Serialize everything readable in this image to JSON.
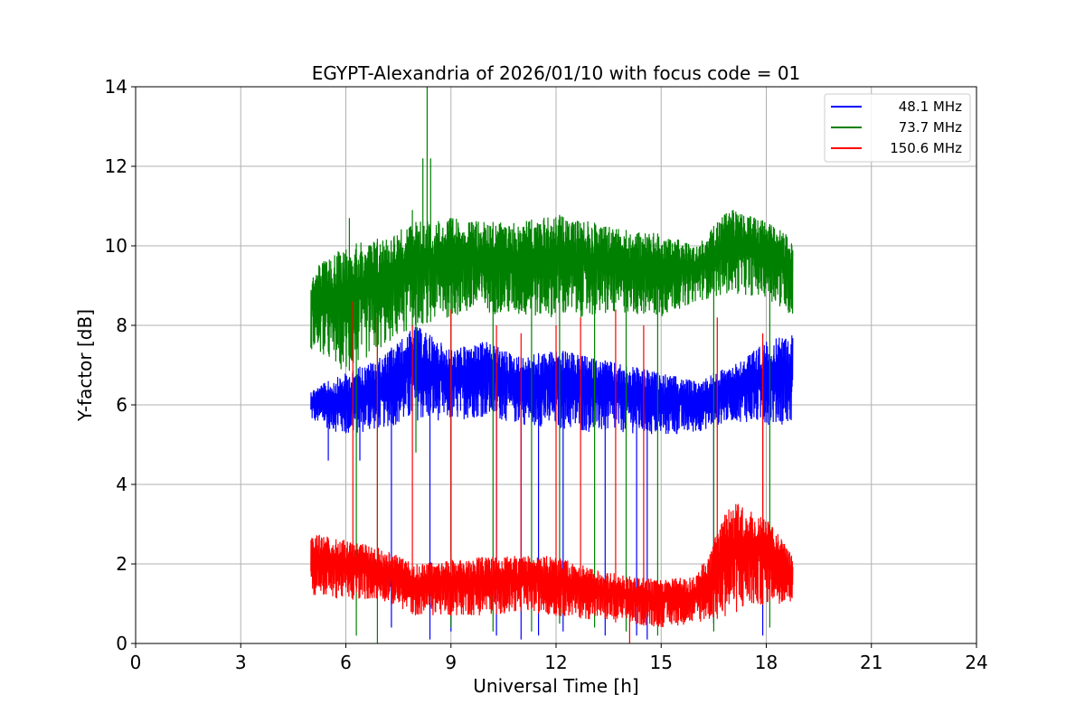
{
  "chart_data": {
    "type": "line",
    "title": "EGYPT-Alexandria of 2026/01/10 with focus code = 01",
    "xlabel": "Universal Time [h]",
    "ylabel": "Y-factor [dB]",
    "xlim": [
      0,
      24
    ],
    "ylim": [
      0,
      14
    ],
    "xticks": [
      0,
      3,
      6,
      9,
      12,
      15,
      18,
      21,
      24
    ],
    "yticks": [
      0,
      2,
      4,
      6,
      8,
      10,
      12,
      14
    ],
    "grid": true,
    "legend_position": "top-right",
    "data_range_hours": [
      5.0,
      18.75
    ],
    "series": [
      {
        "name": "48.1 MHz",
        "color": "#0000ff",
        "band_low": [
          [
            5.0,
            5.6
          ],
          [
            6.0,
            5.2
          ],
          [
            7.0,
            5.4
          ],
          [
            8.0,
            5.6
          ],
          [
            9.0,
            5.6
          ],
          [
            10.0,
            5.7
          ],
          [
            11.0,
            5.5
          ],
          [
            12.0,
            5.4
          ],
          [
            13.0,
            5.3
          ],
          [
            14.0,
            5.3
          ],
          [
            15.0,
            5.2
          ],
          [
            16.0,
            5.3
          ],
          [
            17.0,
            5.6
          ],
          [
            18.0,
            5.5
          ],
          [
            18.75,
            5.5
          ]
        ],
        "band_high": [
          [
            5.0,
            6.4
          ],
          [
            6.0,
            6.8
          ],
          [
            7.0,
            7.2
          ],
          [
            8.0,
            8.0
          ],
          [
            9.0,
            7.4
          ],
          [
            10.0,
            7.6
          ],
          [
            11.0,
            7.2
          ],
          [
            12.0,
            7.4
          ],
          [
            13.0,
            7.2
          ],
          [
            14.0,
            7.0
          ],
          [
            15.0,
            6.8
          ],
          [
            16.0,
            6.6
          ],
          [
            17.0,
            7.0
          ],
          [
            18.0,
            7.6
          ],
          [
            18.75,
            7.8
          ]
        ],
        "dips": [
          [
            5.5,
            4.6
          ],
          [
            6.4,
            4.6
          ],
          [
            7.3,
            0.4
          ],
          [
            8.4,
            0.1
          ],
          [
            9.0,
            0.3
          ],
          [
            10.3,
            0.2
          ],
          [
            11.0,
            0.1
          ],
          [
            11.5,
            0.2
          ],
          [
            12.2,
            0.3
          ],
          [
            13.4,
            0.2
          ],
          [
            14.3,
            0.2
          ],
          [
            14.6,
            0.1
          ],
          [
            16.5,
            0.5
          ],
          [
            17.9,
            0.2
          ]
        ]
      },
      {
        "name": "73.7 MHz",
        "color": "#008000",
        "band_low": [
          [
            5.0,
            7.4
          ],
          [
            6.0,
            6.8
          ],
          [
            7.0,
            7.4
          ],
          [
            8.0,
            8.0
          ],
          [
            9.0,
            8.2
          ],
          [
            10.0,
            8.3
          ],
          [
            11.0,
            8.2
          ],
          [
            12.0,
            8.2
          ],
          [
            13.0,
            8.2
          ],
          [
            14.0,
            8.3
          ],
          [
            15.0,
            8.2
          ],
          [
            16.0,
            8.6
          ],
          [
            17.0,
            8.8
          ],
          [
            18.0,
            8.7
          ],
          [
            18.75,
            8.2
          ]
        ],
        "band_high": [
          [
            5.0,
            9.4
          ],
          [
            6.0,
            10.0
          ],
          [
            7.0,
            10.2
          ],
          [
            8.0,
            10.6
          ],
          [
            9.0,
            10.7
          ],
          [
            10.0,
            10.6
          ],
          [
            11.0,
            10.6
          ],
          [
            12.0,
            10.8
          ],
          [
            13.0,
            10.6
          ],
          [
            14.0,
            10.4
          ],
          [
            15.0,
            10.3
          ],
          [
            16.0,
            10.0
          ],
          [
            17.0,
            11.0
          ],
          [
            18.0,
            10.6
          ],
          [
            18.75,
            10.2
          ]
        ],
        "spikes": [
          [
            8.2,
            12.2
          ],
          [
            8.32,
            14.0
          ],
          [
            8.42,
            12.2
          ],
          [
            6.1,
            10.7
          ],
          [
            7.9,
            10.9
          ]
        ],
        "dips": [
          [
            6.3,
            0.2
          ],
          [
            6.9,
            0.0
          ],
          [
            8.0,
            4.8
          ],
          [
            9.0,
            0.4
          ],
          [
            10.2,
            0.3
          ],
          [
            11.3,
            0.3
          ],
          [
            12.1,
            0.5
          ],
          [
            13.1,
            0.4
          ],
          [
            14.0,
            0.3
          ],
          [
            14.9,
            0.2
          ],
          [
            16.5,
            0.3
          ],
          [
            18.1,
            0.4
          ]
        ]
      },
      {
        "name": "150.6 MHz",
        "color": "#ff0000",
        "band_low": [
          [
            5.0,
            1.2
          ],
          [
            6.0,
            1.1
          ],
          [
            7.0,
            1.1
          ],
          [
            8.0,
            0.7
          ],
          [
            9.0,
            0.7
          ],
          [
            10.0,
            0.7
          ],
          [
            11.0,
            0.8
          ],
          [
            12.0,
            0.7
          ],
          [
            13.0,
            0.6
          ],
          [
            14.0,
            0.5
          ],
          [
            15.0,
            0.4
          ],
          [
            16.0,
            0.5
          ],
          [
            17.0,
            0.7
          ],
          [
            18.0,
            1.0
          ],
          [
            18.75,
            1.0
          ]
        ],
        "band_high": [
          [
            5.0,
            2.8
          ],
          [
            6.0,
            2.6
          ],
          [
            7.0,
            2.4
          ],
          [
            8.0,
            2.0
          ],
          [
            9.0,
            2.1
          ],
          [
            10.0,
            2.2
          ],
          [
            11.0,
            2.2
          ],
          [
            12.0,
            2.2
          ],
          [
            13.0,
            1.9
          ],
          [
            14.0,
            1.7
          ],
          [
            15.0,
            1.6
          ],
          [
            16.0,
            1.7
          ],
          [
            17.0,
            3.6
          ],
          [
            18.0,
            3.2
          ],
          [
            18.75,
            2.2
          ]
        ],
        "spikes": [
          [
            6.2,
            8.6
          ],
          [
            6.9,
            8.2
          ],
          [
            7.9,
            8.0
          ],
          [
            9.0,
            8.4
          ],
          [
            10.3,
            8.0
          ],
          [
            11.0,
            7.8
          ],
          [
            12.0,
            8.0
          ],
          [
            12.7,
            8.2
          ],
          [
            13.7,
            8.4
          ],
          [
            14.5,
            8.0
          ],
          [
            16.6,
            8.2
          ],
          [
            17.9,
            7.8
          ]
        ],
        "dips": [
          [
            14.1,
            0.0
          ]
        ]
      }
    ]
  }
}
